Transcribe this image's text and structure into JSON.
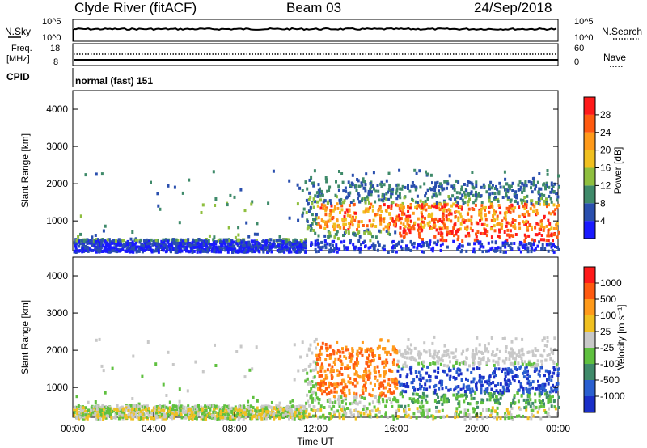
{
  "header": {
    "site": "Clyde River (fitACF)",
    "beam": "Beam 03",
    "date": "24/Sep/2018"
  },
  "strips": {
    "nsky": {
      "label": "N.Sky",
      "ticks": [
        "10^5",
        "10^0"
      ]
    },
    "nsearch": {
      "label": "N.Search",
      "ticks": [
        "10^5",
        "10^0"
      ]
    },
    "freq": {
      "label_line1": "Freq.",
      "label_line2": "[MHz]",
      "ticks": [
        "18",
        "8"
      ]
    },
    "nave": {
      "label": "Nave",
      "ticks": [
        "60",
        "0"
      ]
    },
    "cpid": {
      "label": "CPID",
      "value": "normal (fast) 151"
    }
  },
  "chart_data": [
    {
      "type": "heatmap",
      "name": "power",
      "ylabel": "Slant Range [km]",
      "xlabel": "",
      "yticks": [
        "1000",
        "2000",
        "3000",
        "4000"
      ],
      "ylim": [
        200,
        4500
      ],
      "xlim": [
        0,
        24
      ],
      "colorbar": {
        "label": "Power [dB]",
        "ticks": [
          "4",
          "8",
          "12",
          "16",
          "20",
          "24",
          "28"
        ],
        "colors": [
          "#1a1aff",
          "#2a4fae",
          "#3f8a6a",
          "#8fbf3f",
          "#f0c020",
          "#ff9a1a",
          "#ff5a10",
          "#ff1a1a"
        ]
      }
    },
    {
      "type": "heatmap",
      "name": "velocity",
      "ylabel": "Slant Range [km]",
      "xlabel": "Time UT",
      "xticks": [
        "00:00",
        "04:00",
        "08:00",
        "12:00",
        "16:00",
        "20:00",
        "00:00"
      ],
      "yticks": [
        "1000",
        "2000",
        "3000",
        "4000"
      ],
      "ylim": [
        200,
        4500
      ],
      "xlim": [
        0,
        24
      ],
      "colorbar": {
        "label": "Velocity [m s⁻¹]",
        "ticks": [
          "1000",
          "500",
          "100",
          "25",
          "-25",
          "-100",
          "-500",
          "-1000"
        ],
        "colors": [
          "#1a2fc8",
          "#2a5fd0",
          "#3f8a6a",
          "#5fc03f",
          "#c8c8c8",
          "#f0c020",
          "#ff9a1a",
          "#ff5a10",
          "#ff1a1a"
        ]
      }
    }
  ]
}
